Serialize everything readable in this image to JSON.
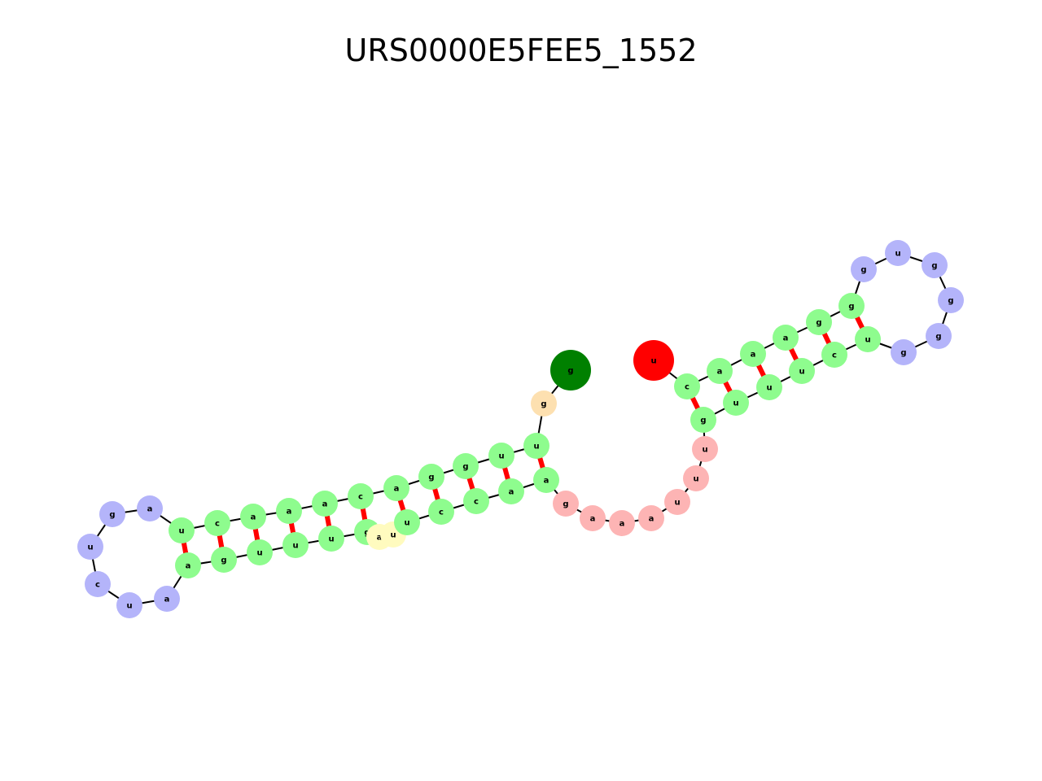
{
  "title": "URS0000E5FEE5_1552",
  "colors": {
    "stem": "#8efc8e",
    "hairpin_loop": "#b4b4fa",
    "multiloop": "#fdb4b4",
    "interior_loop": "#fffbbf",
    "five_prime_unpaired": "#fde0b0",
    "five_prime_end": "#008000",
    "three_prime_end": "#ff0000",
    "backbone": "#000000",
    "pair_bond": "#ff0000"
  },
  "nodes": [
    {
      "id": 1,
      "base": "g",
      "type": "five_prime_end"
    },
    {
      "id": 2,
      "base": "g",
      "type": "five_prime_unpaired"
    },
    {
      "id": 3,
      "base": "u",
      "type": "stem"
    },
    {
      "id": 4,
      "base": "u",
      "type": "stem"
    },
    {
      "id": 5,
      "base": "g",
      "type": "stem"
    },
    {
      "id": 6,
      "base": "g",
      "type": "stem"
    },
    {
      "id": 7,
      "base": "a",
      "type": "stem"
    },
    {
      "id": 8,
      "base": "c",
      "type": "stem"
    },
    {
      "id": 9,
      "base": "a",
      "type": "stem"
    },
    {
      "id": 10,
      "base": "a",
      "type": "stem"
    },
    {
      "id": 11,
      "base": "a",
      "type": "stem"
    },
    {
      "id": 12,
      "base": "c",
      "type": "stem"
    },
    {
      "id": 13,
      "base": "u",
      "type": "stem"
    },
    {
      "id": 14,
      "base": "a",
      "type": "hairpin_loop"
    },
    {
      "id": 15,
      "base": "g",
      "type": "hairpin_loop"
    },
    {
      "id": 16,
      "base": "u",
      "type": "hairpin_loop"
    },
    {
      "id": 17,
      "base": "c",
      "type": "hairpin_loop"
    },
    {
      "id": 18,
      "base": "u",
      "type": "hairpin_loop"
    },
    {
      "id": 19,
      "base": "a",
      "type": "hairpin_loop"
    },
    {
      "id": 20,
      "base": "a",
      "type": "stem"
    },
    {
      "id": 21,
      "base": "g",
      "type": "stem"
    },
    {
      "id": 22,
      "base": "u",
      "type": "stem"
    },
    {
      "id": 23,
      "base": "u",
      "type": "stem"
    },
    {
      "id": 24,
      "base": "u",
      "type": "stem"
    },
    {
      "id": 25,
      "base": "g",
      "type": "stem"
    },
    {
      "id": 26,
      "base": "a",
      "type": "interior_loop"
    },
    {
      "id": 27,
      "base": "u",
      "type": "interior_loop"
    },
    {
      "id": 28,
      "base": "u",
      "type": "stem"
    },
    {
      "id": 29,
      "base": "c",
      "type": "stem"
    },
    {
      "id": 30,
      "base": "c",
      "type": "stem"
    },
    {
      "id": 31,
      "base": "a",
      "type": "stem"
    },
    {
      "id": 32,
      "base": "a",
      "type": "stem"
    },
    {
      "id": 33,
      "base": "g",
      "type": "multiloop"
    },
    {
      "id": 34,
      "base": "a",
      "type": "multiloop"
    },
    {
      "id": 35,
      "base": "a",
      "type": "multiloop"
    },
    {
      "id": 36,
      "base": "a",
      "type": "multiloop"
    },
    {
      "id": 37,
      "base": "u",
      "type": "multiloop"
    },
    {
      "id": 38,
      "base": "u",
      "type": "multiloop"
    },
    {
      "id": 39,
      "base": "u",
      "type": "multiloop"
    },
    {
      "id": 40,
      "base": "g",
      "type": "stem"
    },
    {
      "id": 41,
      "base": "u",
      "type": "stem"
    },
    {
      "id": 42,
      "base": "u",
      "type": "stem"
    },
    {
      "id": 43,
      "base": "u",
      "type": "stem"
    },
    {
      "id": 44,
      "base": "c",
      "type": "stem"
    },
    {
      "id": 45,
      "base": "u",
      "type": "stem"
    },
    {
      "id": 46,
      "base": "g",
      "type": "hairpin_loop"
    },
    {
      "id": 47,
      "base": "g",
      "type": "hairpin_loop"
    },
    {
      "id": 48,
      "base": "g",
      "type": "hairpin_loop"
    },
    {
      "id": 49,
      "base": "g",
      "type": "hairpin_loop"
    },
    {
      "id": 50,
      "base": "u",
      "type": "hairpin_loop"
    },
    {
      "id": 51,
      "base": "g",
      "type": "hairpin_loop"
    },
    {
      "id": 52,
      "base": "g",
      "type": "stem"
    },
    {
      "id": 53,
      "base": "g",
      "type": "stem"
    },
    {
      "id": 54,
      "base": "a",
      "type": "stem"
    },
    {
      "id": 55,
      "base": "a",
      "type": "stem"
    },
    {
      "id": 56,
      "base": "a",
      "type": "stem"
    },
    {
      "id": 57,
      "base": "c",
      "type": "stem"
    },
    {
      "id": 58,
      "base": "u",
      "type": "three_prime_end"
    }
  ],
  "pairs": [
    [
      3,
      32
    ],
    [
      4,
      31
    ],
    [
      5,
      30
    ],
    [
      6,
      29
    ],
    [
      7,
      28
    ],
    [
      8,
      25
    ],
    [
      9,
      24
    ],
    [
      10,
      23
    ],
    [
      11,
      22
    ],
    [
      12,
      21
    ],
    [
      13,
      20
    ],
    [
      40,
      57
    ],
    [
      41,
      56
    ],
    [
      42,
      55
    ],
    [
      43,
      54
    ],
    [
      44,
      53
    ],
    [
      45,
      52
    ]
  ]
}
